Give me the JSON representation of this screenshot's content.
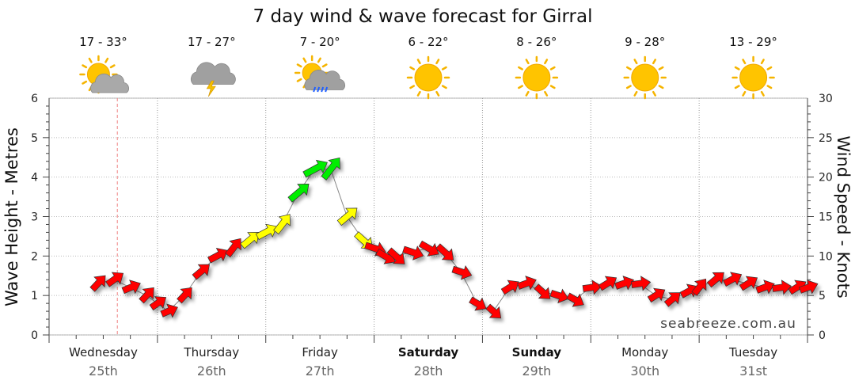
{
  "chart_data": {
    "type": "line",
    "title": "7 day wind & wave forecast for Girral",
    "ylabel_left": "Wave Height - Metres",
    "ylabel_right": "Wind Speed - Knots",
    "ylim_left": [
      0,
      6
    ],
    "ylim_right": [
      0,
      30
    ],
    "yticks_left": [
      "0",
      "1",
      "2",
      "3",
      "4",
      "5",
      "6"
    ],
    "yticks_right": [
      "0",
      "5",
      "10",
      "15",
      "20",
      "25",
      "30"
    ],
    "grid": true,
    "credit": "seabreeze.com.au",
    "days": [
      {
        "name": "Wednesday",
        "date": "25th",
        "temp": "17 - 33°",
        "icon": "partly-cloudy-icon",
        "bold": false
      },
      {
        "name": "Thursday",
        "date": "26th",
        "temp": "17 - 27°",
        "icon": "storm-icon",
        "bold": false
      },
      {
        "name": "Friday",
        "date": "27th",
        "temp": "7 - 20°",
        "icon": "showers-icon",
        "bold": false
      },
      {
        "name": "Saturday",
        "date": "28th",
        "temp": "6 - 22°",
        "icon": "sunny-icon",
        "bold": true
      },
      {
        "name": "Sunday",
        "date": "29th",
        "temp": "8 - 26°",
        "icon": "sunny-icon",
        "bold": true
      },
      {
        "name": "Monday",
        "date": "30th",
        "temp": "9 - 28°",
        "icon": "sunny-icon",
        "bold": false
      },
      {
        "name": "Tuesday",
        "date": "31st",
        "temp": "13 - 29°",
        "icon": "sunny-icon",
        "bold": false
      }
    ],
    "wind_colors": {
      "low": "#ff0000",
      "mid": "#ffff00",
      "high": "#00ee00"
    },
    "series": [
      {
        "x_days": [
          0.45,
          0.6,
          0.75,
          0.9,
          1.0,
          1.1,
          1.25,
          1.4,
          1.55,
          1.7,
          1.85,
          2.0,
          2.15,
          2.3,
          2.45,
          2.6,
          2.75,
          2.9,
          3.0,
          3.1,
          3.2,
          3.35,
          3.5,
          3.65,
          3.8,
          3.95,
          4.1,
          4.25,
          4.4,
          4.55,
          4.7,
          4.85,
          5.0,
          5.15,
          5.3,
          5.45,
          5.6,
          5.75,
          5.9,
          6.0,
          6.15,
          6.3,
          6.45,
          6.6,
          6.75,
          6.9,
          7.0
        ],
        "wind_knots": [
          6.5,
          7,
          6,
          5,
          4,
          3,
          5,
          8,
          10,
          11,
          12,
          13,
          14,
          18,
          21,
          21,
          15,
          12,
          11,
          10,
          10,
          10.5,
          11,
          10.5,
          8,
          4,
          3,
          6,
          6.5,
          5.5,
          5,
          4.5,
          6,
          6.5,
          6.5,
          6.5,
          5,
          4.5,
          5.5,
          6,
          7,
          7,
          6.5,
          6,
          6,
          6,
          6
        ],
        "wind_dir": [
          "SE",
          "SE",
          "SE",
          "SE",
          "SE",
          "SE",
          "SE",
          "SW",
          "SW",
          "SW",
          "SW",
          "SW",
          "SW",
          "SW",
          "SW",
          "SW",
          "SW",
          "NW",
          "NW",
          "NW",
          "NW",
          "NW",
          "NW",
          "NW",
          "NW",
          "NW",
          "NW",
          "W",
          "W",
          "NW",
          "NW",
          "NW",
          "W",
          "W",
          "W",
          "W",
          "W",
          "SW",
          "SW",
          "SW",
          "SW",
          "SW",
          "W",
          "W",
          "W",
          "W",
          "W"
        ]
      }
    ]
  }
}
